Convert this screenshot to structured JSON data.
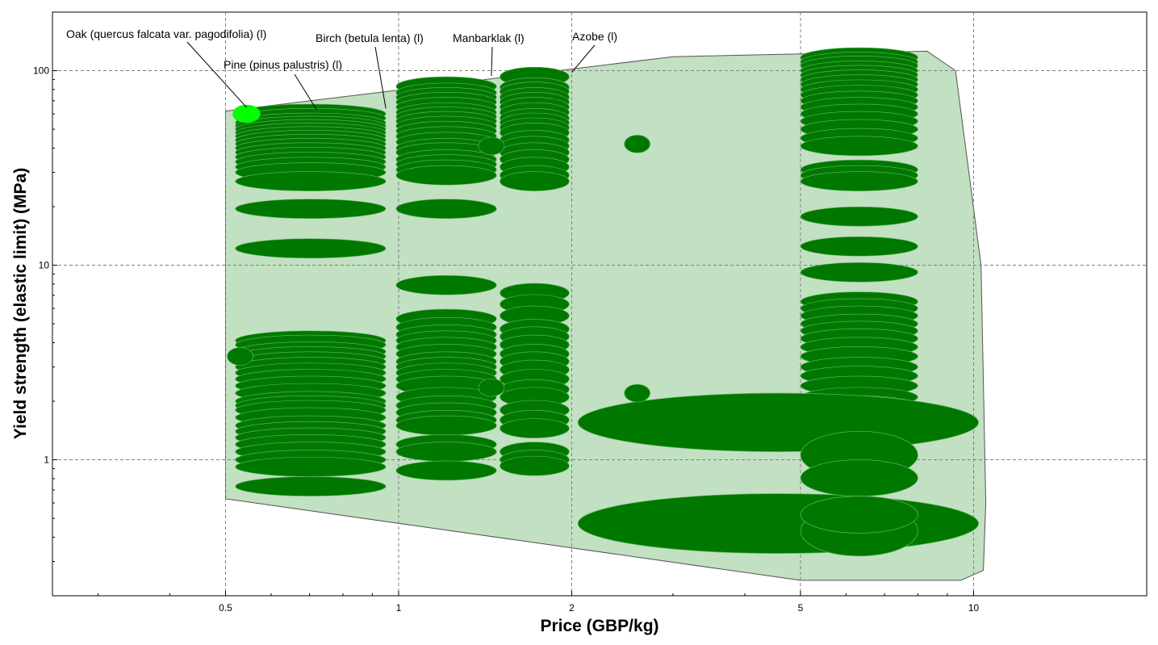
{
  "chart_data": {
    "type": "scatter",
    "title": "",
    "xlabel": "Price (GBP/kg)",
    "ylabel": "Yield strength (elastic limit) (MPa)",
    "x_scale": "log",
    "y_scale": "log",
    "xlim": [
      0.25,
      20
    ],
    "ylim": [
      0.2,
      200
    ],
    "grid": true,
    "x_ticks": [
      {
        "value": 0.5,
        "label": "0.5"
      },
      {
        "value": 1,
        "label": "1"
      },
      {
        "value": 2,
        "label": "2"
      },
      {
        "value": 5,
        "label": "5"
      },
      {
        "value": 10,
        "label": "10"
      }
    ],
    "y_ticks": [
      {
        "value": 1,
        "label": "1"
      },
      {
        "value": 10,
        "label": "10"
      },
      {
        "value": 100,
        "label": "100"
      }
    ],
    "colors": {
      "bubble_fill": "#007800",
      "bubble_stroke": "#66b866",
      "highlight_fill": "#00ff00",
      "envelope_fill": "#c2e0c2",
      "envelope_stroke": "#555555",
      "grid": "#808080"
    },
    "envelope": [
      [
        0.5,
        62
      ],
      [
        3.0,
        118
      ],
      [
        8.3,
        126
      ],
      [
        9.3,
        100
      ],
      [
        10.3,
        10
      ],
      [
        10.5,
        0.6
      ],
      [
        10.4,
        0.27
      ],
      [
        9.5,
        0.24
      ],
      [
        5.0,
        0.24
      ],
      [
        0.5,
        0.63
      ]
    ],
    "groups": [
      {
        "x_range": [
          0.52,
          0.95
        ],
        "y_values": [
          60,
          57,
          54,
          52,
          50,
          48,
          46,
          44,
          42,
          40,
          38,
          36,
          34,
          32,
          30,
          27,
          19.5,
          12.2,
          4.1,
          3.9,
          3.6,
          3.4,
          3.2,
          3.0,
          2.8,
          2.6,
          2.4,
          2.2,
          2.0,
          1.9,
          1.8,
          1.65,
          1.5,
          1.4,
          1.3,
          1.2,
          1.1,
          1.0,
          0.92,
          0.73
        ]
      },
      {
        "x_range": [
          0.99,
          1.48
        ],
        "y_values": [
          83,
          77,
          73,
          69,
          65,
          61,
          58,
          55,
          52,
          49,
          46,
          43,
          40,
          38,
          35,
          33,
          31,
          29,
          19.5,
          7.9,
          5.3,
          4.8,
          4.4,
          4.1,
          3.8,
          3.5,
          3.2,
          3.0,
          2.8,
          2.6,
          2.4,
          2.1,
          1.9,
          1.75,
          1.6,
          1.5,
          1.2,
          1.1,
          0.88
        ]
      },
      {
        "x_range": [
          1.5,
          1.98
        ],
        "y_values": [
          93,
          82,
          78,
          73,
          69,
          65,
          61,
          57,
          54,
          51,
          48,
          44,
          41,
          38,
          35,
          32,
          29,
          27,
          7.2,
          6.3,
          5.5,
          4.7,
          4.3,
          3.9,
          3.5,
          3.2,
          2.9,
          2.6,
          2.3,
          2.1,
          1.8,
          1.6,
          1.45,
          1.1,
          1.0,
          0.93
        ]
      },
      {
        "x_range": [
          5.0,
          8.0
        ],
        "y_values": [
          117,
          111,
          106,
          100,
          95,
          90,
          85,
          80,
          75,
          70,
          65,
          60,
          55,
          50,
          45,
          41,
          31,
          29,
          27,
          17.8,
          12.5,
          9.2,
          6.5,
          6.0,
          5.5,
          5.0,
          4.6,
          4.2,
          3.8,
          3.4,
          3.0,
          2.7,
          2.4,
          2.1,
          1.9
        ]
      }
    ],
    "single_points": [
      {
        "x": 0.53,
        "y": 3.4
      },
      {
        "x": 1.45,
        "y": 41
      },
      {
        "x": 1.45,
        "y": 2.35
      },
      {
        "x": 2.6,
        "y": 42
      },
      {
        "x": 2.6,
        "y": 2.2
      }
    ],
    "large_points": [
      {
        "x_range": [
          2.05,
          10.2
        ],
        "y": 1.55,
        "y_range": [
          1.1,
          2.2
        ]
      },
      {
        "x_range": [
          2.05,
          10.2
        ],
        "y": 0.47,
        "y_range": [
          0.33,
          0.67
        ]
      },
      {
        "x_range": [
          5.0,
          8.0
        ],
        "y": 1.05,
        "y_range": [
          0.8,
          1.4
        ]
      },
      {
        "x_range": [
          5.0,
          8.0
        ],
        "y": 0.8,
        "y_range": [
          0.65,
          1.0
        ]
      },
      {
        "x_range": [
          5.0,
          8.0
        ],
        "y": 0.43,
        "y_range": [
          0.32,
          0.58
        ]
      },
      {
        "x_range": [
          5.0,
          8.0
        ],
        "y": 0.52,
        "y_range": [
          0.42,
          0.65
        ]
      }
    ],
    "annotations": [
      {
        "text": "Oak (quercus falcata var. pagodifolia) (l)",
        "point": [
          0.53,
          60
        ],
        "highlight": true
      },
      {
        "text": "Pine (pinus palustris) (l)",
        "point": [
          0.72,
          63
        ]
      },
      {
        "text": "Birch (betula lenta) (l)",
        "point": [
          0.95,
          64
        ]
      },
      {
        "text": "Manbarklak (l)",
        "point": [
          1.45,
          94
        ]
      },
      {
        "text": "Azobe (l)",
        "point": [
          2.0,
          98
        ]
      }
    ]
  }
}
